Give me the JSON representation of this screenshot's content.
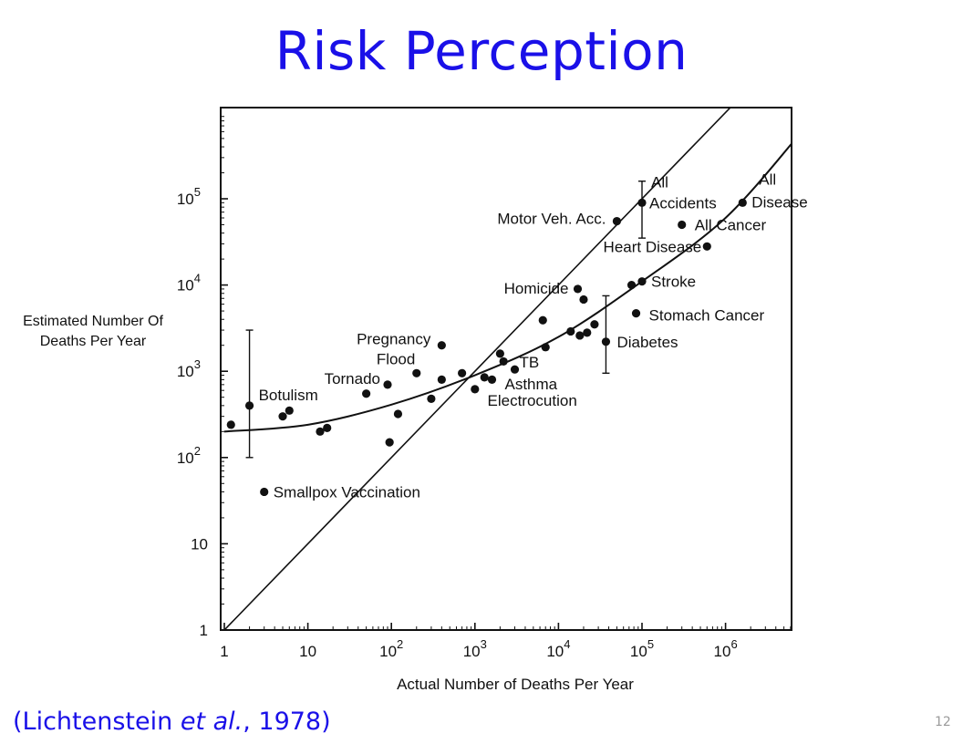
{
  "slide": {
    "title": "Risk Perception",
    "citation_prefix": "(Lichtenstein ",
    "citation_italic": "et al.",
    "citation_suffix": ", 1978)",
    "slide_number": "12"
  },
  "chart_data": {
    "type": "scatter",
    "xlabel": "Actual Number of Deaths Per Year",
    "ylabel_lines": [
      "Estimated Number Of",
      "Deaths Per Year"
    ],
    "xscale": "log",
    "yscale": "log",
    "xlim": [
      1,
      7000000
    ],
    "ylim": [
      1,
      1000000
    ],
    "x_ticks": [
      {
        "value": 1,
        "base": "1",
        "exp": ""
      },
      {
        "value": 10,
        "base": "10",
        "exp": ""
      },
      {
        "value": 100,
        "base": "10",
        "exp": "2"
      },
      {
        "value": 1000,
        "base": "10",
        "exp": "3"
      },
      {
        "value": 10000,
        "base": "10",
        "exp": "4"
      },
      {
        "value": 100000,
        "base": "10",
        "exp": "5"
      },
      {
        "value": 1000000,
        "base": "10",
        "exp": "6"
      }
    ],
    "y_ticks": [
      {
        "value": 1,
        "base": "1",
        "exp": ""
      },
      {
        "value": 10,
        "base": "10",
        "exp": ""
      },
      {
        "value": 100,
        "base": "10",
        "exp": "2"
      },
      {
        "value": 1000,
        "base": "10",
        "exp": "3"
      },
      {
        "value": 10000,
        "base": "10",
        "exp": "4"
      },
      {
        "value": 100000,
        "base": "10",
        "exp": "5"
      }
    ],
    "grid": false,
    "legend": "none",
    "series": [
      {
        "points": [
          {
            "x": 1.2,
            "y": 240
          },
          {
            "x": 2,
            "y": 400,
            "label": "Botulism",
            "error": [
              100,
              3000
            ]
          },
          {
            "x": 5,
            "y": 300
          },
          {
            "x": 6,
            "y": 350
          },
          {
            "x": 14,
            "y": 200
          },
          {
            "x": 17,
            "y": 220
          },
          {
            "x": 3,
            "y": 40,
            "label": "Smallpox Vaccination"
          },
          {
            "x": 50,
            "y": 550
          },
          {
            "x": 90,
            "y": 700,
            "label": "Tornado"
          },
          {
            "x": 95,
            "y": 150
          },
          {
            "x": 120,
            "y": 320
          },
          {
            "x": 200,
            "y": 950,
            "label": "Flood"
          },
          {
            "x": 300,
            "y": 480
          },
          {
            "x": 400,
            "y": 800
          },
          {
            "x": 400,
            "y": 2000,
            "label": "Pregnancy"
          },
          {
            "x": 700,
            "y": 950
          },
          {
            "x": 1000,
            "y": 620,
            "label": "Electrocution"
          },
          {
            "x": 1300,
            "y": 850
          },
          {
            "x": 1600,
            "y": 800,
            "label": "Asthma"
          },
          {
            "x": 2000,
            "y": 1600
          },
          {
            "x": 2200,
            "y": 1300
          },
          {
            "x": 3000,
            "y": 1050,
            "label": "TB"
          },
          {
            "x": 6500,
            "y": 3900
          },
          {
            "x": 7000,
            "y": 1900
          },
          {
            "x": 14000,
            "y": 2900
          },
          {
            "x": 17000,
            "y": 9000,
            "label": "Homicide"
          },
          {
            "x": 18000,
            "y": 2600
          },
          {
            "x": 22000,
            "y": 2800
          },
          {
            "x": 20000,
            "y": 6800
          },
          {
            "x": 27000,
            "y": 3500
          },
          {
            "x": 37000,
            "y": 2200,
            "label": "Diabetes",
            "error": [
              950,
              7500
            ]
          },
          {
            "x": 50000,
            "y": 55000,
            "label": "Motor Veh. Acc."
          },
          {
            "x": 75000,
            "y": 10000
          },
          {
            "x": 85000,
            "y": 4700,
            "label": "Stomach Cancer"
          },
          {
            "x": 100000,
            "y": 90000,
            "label": "All Accidents",
            "error": [
              35000,
              160000
            ]
          },
          {
            "x": 100000,
            "y": 11000,
            "label": "Stroke"
          },
          {
            "x": 300000,
            "y": 50000,
            "label": "All Cancer"
          },
          {
            "x": 600000,
            "y": 28000,
            "label": "Heart Disease"
          },
          {
            "x": 1600000,
            "y": 90000,
            "label": "All Disease"
          }
        ]
      }
    ],
    "reference_lines": [
      {
        "kind": "identity",
        "from": [
          1,
          1
        ],
        "to": [
          2000000,
          2000000
        ]
      },
      {
        "kind": "quadratic_fit",
        "points": [
          [
            1,
            200
          ],
          [
            10,
            240
          ],
          [
            100,
            410
          ],
          [
            1000,
            900
          ],
          [
            10000,
            2500
          ],
          [
            100000,
            11000
          ],
          [
            1000000,
            60000
          ],
          [
            7000000,
            500000
          ]
        ]
      }
    ],
    "annotations": [
      {
        "text": "Botulism",
        "anchor_x": 2,
        "anchor_y": 400,
        "dx": 10,
        "dy": -6,
        "align": "start"
      },
      {
        "text": "Smallpox Vaccination",
        "anchor_x": 3,
        "anchor_y": 40,
        "dx": 10,
        "dy": 6,
        "align": "start"
      },
      {
        "text": "Tornado",
        "anchor_x": 90,
        "anchor_y": 700,
        "dx": -8,
        "dy": -1,
        "align": "end"
      },
      {
        "text": "Pregnancy",
        "anchor_x": 400,
        "anchor_y": 2000,
        "dx": -12,
        "dy": -1,
        "align": "end"
      },
      {
        "text": "Flood",
        "anchor_x": 400,
        "anchor_y": 2000,
        "dx": -29,
        "dy": 21,
        "align": "end"
      },
      {
        "text": "TB",
        "anchor_x": 3000,
        "anchor_y": 1050,
        "dx": 5,
        "dy": -2,
        "align": "start"
      },
      {
        "text": "Asthma",
        "anchor_x": 3000,
        "anchor_y": 1050,
        "dx": -11,
        "dy": 22,
        "align": "start"
      },
      {
        "text": "Electrocution",
        "anchor_x": 3000,
        "anchor_y": 1050,
        "dx": -30,
        "dy": 40,
        "align": "start"
      },
      {
        "text": "Homicide",
        "anchor_x": 17000,
        "anchor_y": 9000,
        "dx": -10,
        "dy": 5,
        "align": "end"
      },
      {
        "text": "Diabetes",
        "anchor_x": 37000,
        "anchor_y": 2200,
        "dx": 12,
        "dy": 6,
        "align": "start"
      },
      {
        "text": "Stomach Cancer",
        "anchor_x": 85000,
        "anchor_y": 4700,
        "dx": 14,
        "dy": 8,
        "align": "start"
      },
      {
        "text": "Stroke",
        "anchor_x": 100000,
        "anchor_y": 11000,
        "dx": 10,
        "dy": 6,
        "align": "start"
      },
      {
        "text": "Heart Disease",
        "anchor_x": 600000,
        "anchor_y": 28000,
        "dx": -6,
        "dy": 6,
        "align": "end"
      },
      {
        "text": "All Cancer",
        "anchor_x": 300000,
        "anchor_y": 50000,
        "dx": 14,
        "dy": 6,
        "align": "start"
      },
      {
        "text": "Motor Veh. Acc.",
        "anchor_x": 50000,
        "anchor_y": 55000,
        "dx": -12,
        "dy": 3,
        "align": "end"
      },
      {
        "text": "All",
        "anchor_x": 100000,
        "anchor_y": 90000,
        "dx": 10,
        "dy": -17,
        "align": "start"
      },
      {
        "text": "Accidents",
        "anchor_x": 100000,
        "anchor_y": 90000,
        "dx": 8,
        "dy": 6,
        "align": "start"
      },
      {
        "text": "All",
        "anchor_x": 1600000,
        "anchor_y": 90000,
        "dx": 18,
        "dy": -20,
        "align": "start"
      },
      {
        "text": "Disease",
        "anchor_x": 1600000,
        "anchor_y": 90000,
        "dx": 10,
        "dy": 5,
        "align": "start"
      }
    ]
  }
}
